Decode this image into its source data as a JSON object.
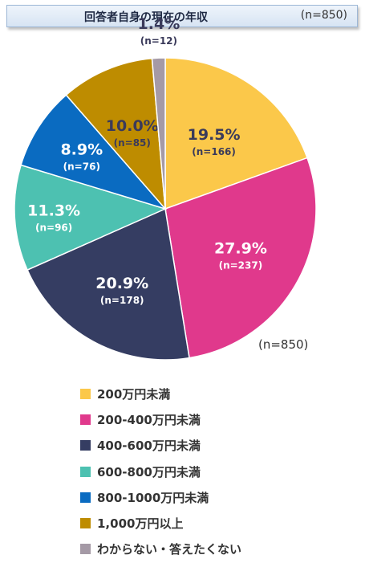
{
  "header": {
    "title": "回答者自身の現在の年収",
    "sample": "(n=850)"
  },
  "chart_data": {
    "type": "pie",
    "total_label": "(n=850)",
    "legend_position": "bottom",
    "slices": [
      {
        "name": "200万円未満",
        "percent": 19.5,
        "pct_label": "19.5%",
        "n_label": "(n=166)",
        "color": "#FBC84A"
      },
      {
        "name": "200-400万円未満",
        "percent": 27.9,
        "pct_label": "27.9%",
        "n_label": "(n=237)",
        "color": "#E0398C"
      },
      {
        "name": "400-600万円未満",
        "percent": 20.9,
        "pct_label": "20.9%",
        "n_label": "(n=178)",
        "color": "#353D62"
      },
      {
        "name": "600-800万円未満",
        "percent": 11.3,
        "pct_label": "11.3%",
        "n_label": "(n=96)",
        "color": "#4DC1B1"
      },
      {
        "name": "800-1000万円未満",
        "percent": 8.9,
        "pct_label": "8.9%",
        "n_label": "(n=76)",
        "color": "#0A6BC1"
      },
      {
        "name": "1,000万円以上",
        "percent": 10.0,
        "pct_label": "10.0%",
        "n_label": "(n=85)",
        "color": "#BE8C00"
      },
      {
        "name": "わからない・答えたくない",
        "percent": 1.4,
        "pct_label": "1.4%",
        "n_label": "(n=12)",
        "color": "#A59AA6"
      }
    ]
  }
}
